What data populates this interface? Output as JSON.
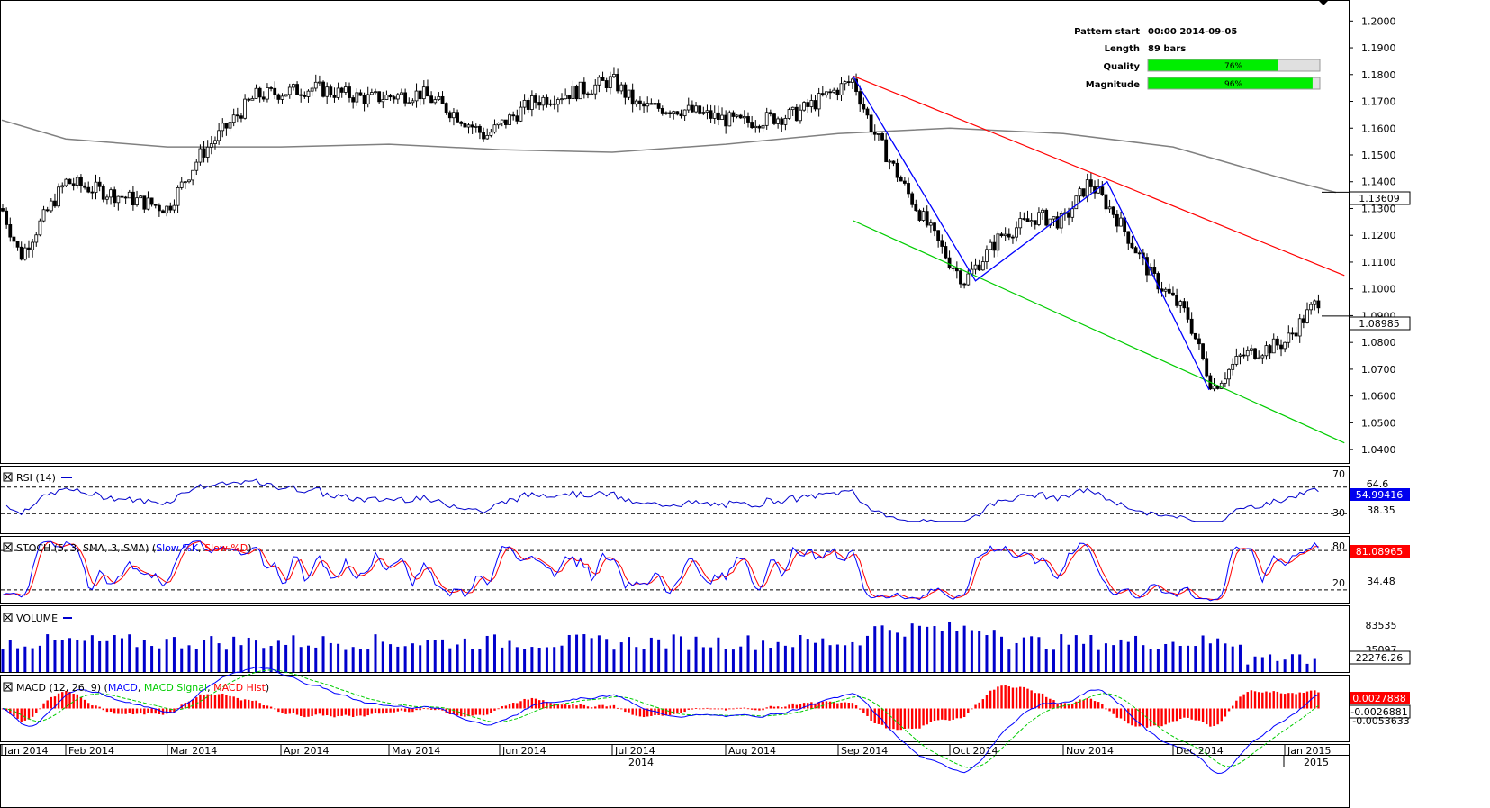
{
  "info": {
    "pattern_start_label": "Pattern start",
    "pattern_start_value": "00:00 2014-09-05",
    "length_label": "Length",
    "length_value": "89 bars",
    "quality_label": "Quality",
    "quality_value": "76%",
    "quality_fraction": 0.76,
    "magnitude_label": "Magnitude",
    "magnitude_value": "96%",
    "magnitude_fraction": 0.96
  },
  "panels": {
    "rsi": {
      "title": "RSI (14)",
      "level_high": "70",
      "level_low": "30",
      "tick1": "64.6",
      "tick2": "38.35",
      "current": "54.99416"
    },
    "stoch": {
      "title_prefix": "STOCH (5, 3, SMA, 3, SMA) (",
      "slow_k": "Slow %K",
      "sep": ", ",
      "slow_d": "Slow %D",
      "title_suffix": ")",
      "level_high": "80",
      "level_low": "20",
      "tick1": "34.48",
      "current": "81.08965"
    },
    "volume": {
      "title": "VOLUME",
      "tick1": "83535",
      "tick2": "35097",
      "current": "22276.26"
    },
    "macd": {
      "title_prefix": "MACD (12, 26, 9) (",
      "macd": "MACD",
      "sep1": ", ",
      "signal": "MACD Signal",
      "sep2": ", ",
      "hist": "MACD Hist",
      "title_suffix": ")",
      "current_macd": "0.0027888",
      "current_signal": "-0.0026881",
      "tick1": "-0.0053633"
    }
  },
  "colors": {
    "up_candle": "#ffffff",
    "down_candle": "#000000",
    "moving_average": "#808080",
    "zigzag": "#0000ff",
    "resistance": "#ff0000",
    "support": "#00cc00",
    "rsi_line": "#0000cc",
    "stoch_k": "#0000ff",
    "stoch_d": "#ff0000",
    "volume_bars": "#0000cc",
    "macd_line": "#0000ff",
    "macd_signal": "#00cc00",
    "macd_hist": "#ff0000",
    "quality_fill": "#00ee00",
    "price_tag_bg": "#ffffff",
    "rsi_tag_bg": "#0000ee",
    "stoch_tag_bg": "#ff0000",
    "volume_tag_bg": "#ffffff",
    "macd_tag_bg": "#ff0000"
  },
  "chart_data": {
    "type": "candlestick",
    "title": "",
    "x_axis": {
      "months": [
        "Jan 2014",
        "Feb 2014",
        "Mar 2014",
        "Apr 2014",
        "May 2014",
        "Jun 2014",
        "Jul 2014",
        "Aug 2014",
        "Sep 2014",
        "Oct 2014",
        "Nov 2014",
        "Dec 2014",
        "Jan 2015"
      ],
      "years": [
        "2014",
        "2015"
      ]
    },
    "y_axis": {
      "ylim": [
        1.035,
        1.2075
      ],
      "ticks": [
        "1.2000",
        "1.1900",
        "1.1800",
        "1.1700",
        "1.1600",
        "1.1500",
        "1.1400",
        "1.1300",
        "1.1200",
        "1.1100",
        "1.1000",
        "1.0900",
        "1.0800",
        "1.0700",
        "1.0600",
        "1.0500",
        "1.0400"
      ]
    },
    "price_path": {
      "x_dates": [
        "2014-01-01",
        "2014-01-10",
        "2014-01-20",
        "2014-02-01",
        "2014-02-15",
        "2014-03-01",
        "2014-03-10",
        "2014-03-25",
        "2014-04-10",
        "2014-04-25",
        "2014-05-10",
        "2014-05-20",
        "2014-05-28",
        "2014-06-10",
        "2014-06-25",
        "2014-07-01",
        "2014-07-08",
        "2014-07-20",
        "2014-08-05",
        "2014-08-20",
        "2014-09-05",
        "2014-09-10",
        "2014-09-20",
        "2014-10-01",
        "2014-10-05",
        "2014-10-15",
        "2014-10-25",
        "2014-11-01",
        "2014-11-08",
        "2014-11-15",
        "2014-11-25",
        "2014-12-05",
        "2014-12-12",
        "2014-12-20",
        "2015-01-01",
        "2015-01-10",
        "2015-01-13"
      ],
      "close": [
        1.13,
        1.112,
        1.125,
        1.14,
        1.135,
        1.13,
        1.15,
        1.172,
        1.175,
        1.171,
        1.173,
        1.165,
        1.157,
        1.17,
        1.175,
        1.178,
        1.168,
        1.167,
        1.162,
        1.165,
        1.178,
        1.16,
        1.135,
        1.11,
        1.103,
        1.12,
        1.127,
        1.125,
        1.14,
        1.128,
        1.105,
        1.09,
        1.063,
        1.075,
        1.08,
        1.098,
        1.09
      ]
    },
    "current_price": "1.08985",
    "moving_average_current": "1.13609",
    "moving_average": {
      "x_dates": [
        "2014-01-01",
        "2014-02-01",
        "2014-03-01",
        "2014-04-01",
        "2014-05-01",
        "2014-06-01",
        "2014-07-01",
        "2014-08-01",
        "2014-09-01",
        "2014-10-01",
        "2014-11-01",
        "2014-12-01",
        "2015-01-01",
        "2015-01-13"
      ],
      "values": [
        1.163,
        1.156,
        1.153,
        1.153,
        1.154,
        1.152,
        1.151,
        1.154,
        1.158,
        1.16,
        1.158,
        1.153,
        1.141,
        1.136
      ]
    },
    "zigzag": {
      "x_dates": [
        "2014-09-05",
        "2014-10-08",
        "2014-11-13",
        "2014-12-11"
      ],
      "values": [
        1.1795,
        1.103,
        1.14,
        1.0623
      ]
    },
    "channel": {
      "resistance": {
        "x_dates": [
          "2014-09-05",
          "2015-01-15"
        ],
        "values": [
          1.1795,
          1.105
        ]
      },
      "support": {
        "x_dates": [
          "2014-09-05",
          "2015-01-15"
        ],
        "values": [
          1.1255,
          1.0425
        ]
      }
    },
    "volume_ylim": [
      0,
      90000
    ],
    "macd_ylim": [
      -0.007,
      0.007
    ]
  }
}
